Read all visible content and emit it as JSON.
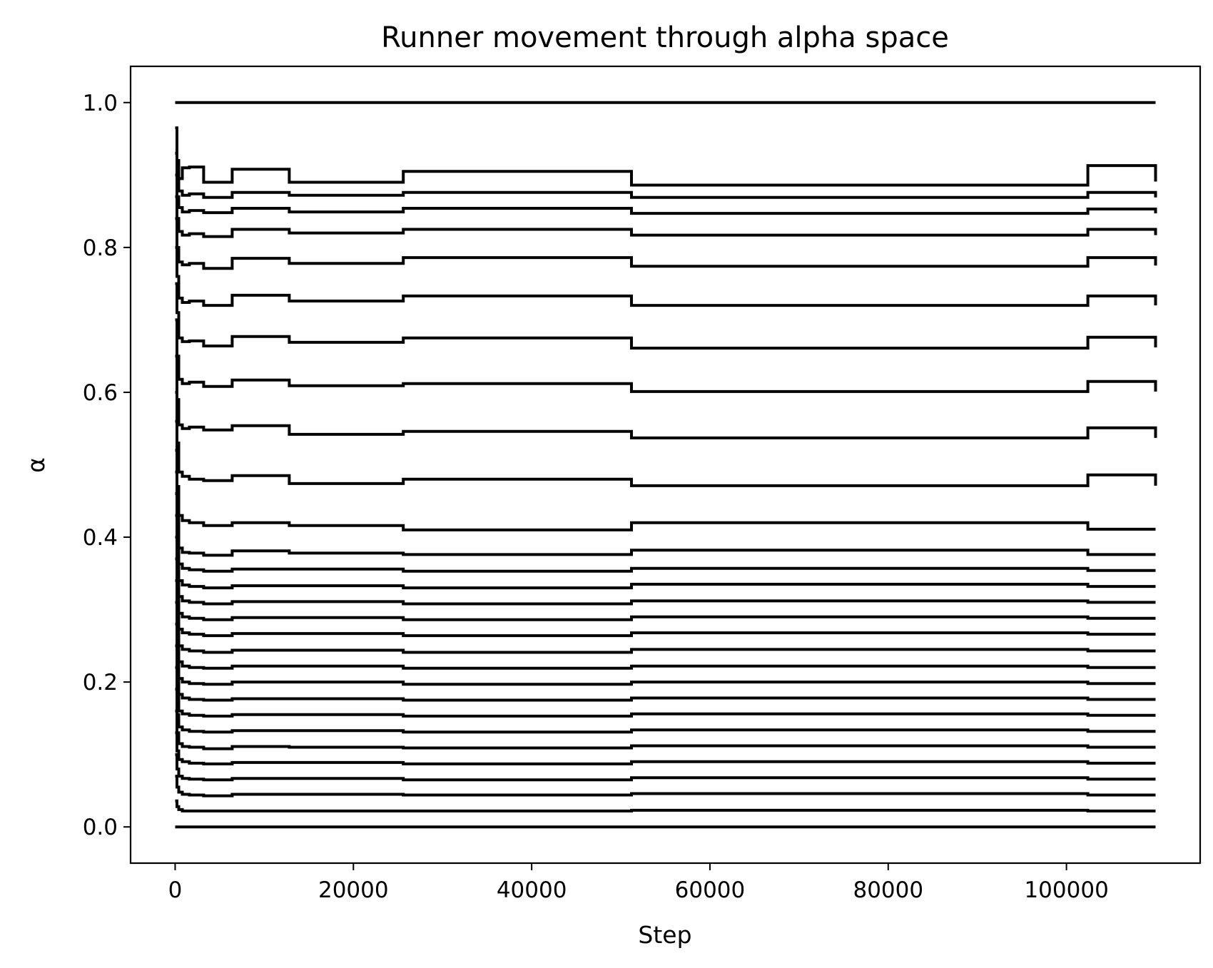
{
  "chart_data": {
    "type": "line",
    "title": "Runner movement through alpha space",
    "xlabel": "Step",
    "ylabel": "α",
    "xlim": [
      -5000,
      115000
    ],
    "ylim": [
      -0.05,
      1.05
    ],
    "xticks": [
      0,
      20000,
      40000,
      60000,
      80000,
      100000
    ],
    "xtick_labels": [
      "0",
      "20000",
      "40000",
      "60000",
      "80000",
      "100000"
    ],
    "yticks": [
      0.0,
      0.2,
      0.4,
      0.6,
      0.8,
      1.0
    ],
    "ytick_labels": [
      "0.0",
      "0.2",
      "0.4",
      "0.6",
      "0.8",
      "1.0"
    ],
    "grid": false,
    "legend": false,
    "line_color": "#000000",
    "x_breakpoints": [
      0,
      200,
      400,
      800,
      1600,
      3200,
      6400,
      12800,
      25600,
      51200,
      102400,
      110000
    ],
    "series": [
      {
        "values": [
          0.0,
          0.0,
          0.0,
          0.0,
          0.0,
          0.0,
          0.0,
          0.0,
          0.0,
          0.0,
          0.0,
          0.0
        ]
      },
      {
        "values": [
          0.036,
          0.028,
          0.024,
          0.022,
          0.022,
          0.022,
          0.022,
          0.022,
          0.022,
          0.023,
          0.022,
          0.022
        ]
      },
      {
        "values": [
          0.07,
          0.055,
          0.048,
          0.045,
          0.044,
          0.043,
          0.045,
          0.045,
          0.044,
          0.046,
          0.044,
          0.044
        ]
      },
      {
        "values": [
          0.1,
          0.08,
          0.07,
          0.067,
          0.066,
          0.065,
          0.067,
          0.067,
          0.065,
          0.068,
          0.066,
          0.066
        ]
      },
      {
        "values": [
          0.13,
          0.105,
          0.093,
          0.09,
          0.088,
          0.087,
          0.089,
          0.089,
          0.087,
          0.09,
          0.088,
          0.088
        ]
      },
      {
        "values": [
          0.16,
          0.13,
          0.115,
          0.111,
          0.11,
          0.108,
          0.111,
          0.11,
          0.109,
          0.112,
          0.11,
          0.11
        ]
      },
      {
        "values": [
          0.19,
          0.155,
          0.138,
          0.134,
          0.132,
          0.131,
          0.133,
          0.133,
          0.131,
          0.134,
          0.132,
          0.132
        ]
      },
      {
        "values": [
          0.22,
          0.18,
          0.16,
          0.156,
          0.154,
          0.153,
          0.155,
          0.155,
          0.153,
          0.156,
          0.154,
          0.154
        ]
      },
      {
        "values": [
          0.25,
          0.205,
          0.183,
          0.178,
          0.176,
          0.175,
          0.177,
          0.177,
          0.175,
          0.178,
          0.176,
          0.176
        ]
      },
      {
        "values": [
          0.28,
          0.23,
          0.205,
          0.2,
          0.198,
          0.197,
          0.2,
          0.2,
          0.197,
          0.2,
          0.198,
          0.198
        ]
      },
      {
        "values": [
          0.31,
          0.255,
          0.228,
          0.222,
          0.22,
          0.219,
          0.222,
          0.222,
          0.219,
          0.222,
          0.22,
          0.22
        ]
      },
      {
        "values": [
          0.34,
          0.28,
          0.25,
          0.245,
          0.243,
          0.241,
          0.244,
          0.244,
          0.241,
          0.245,
          0.243,
          0.243
        ]
      },
      {
        "values": [
          0.37,
          0.305,
          0.273,
          0.268,
          0.266,
          0.264,
          0.267,
          0.267,
          0.264,
          0.268,
          0.266,
          0.266
        ]
      },
      {
        "values": [
          0.4,
          0.33,
          0.295,
          0.29,
          0.288,
          0.286,
          0.289,
          0.289,
          0.286,
          0.29,
          0.288,
          0.288
        ]
      },
      {
        "values": [
          0.43,
          0.355,
          0.318,
          0.312,
          0.31,
          0.308,
          0.311,
          0.311,
          0.308,
          0.312,
          0.31,
          0.31
        ]
      },
      {
        "values": [
          0.46,
          0.38,
          0.34,
          0.334,
          0.332,
          0.33,
          0.333,
          0.333,
          0.33,
          0.335,
          0.332,
          0.332
        ]
      },
      {
        "values": [
          0.49,
          0.405,
          0.363,
          0.357,
          0.355,
          0.353,
          0.356,
          0.356,
          0.353,
          0.357,
          0.354,
          0.354
        ]
      },
      {
        "values": [
          0.52,
          0.43,
          0.385,
          0.379,
          0.378,
          0.375,
          0.381,
          0.378,
          0.376,
          0.382,
          0.376,
          0.376
        ]
      },
      {
        "values": [
          0.56,
          0.47,
          0.43,
          0.423,
          0.42,
          0.416,
          0.42,
          0.416,
          0.41,
          0.42,
          0.411,
          0.411
        ]
      },
      {
        "values": [
          0.6,
          0.53,
          0.49,
          0.484,
          0.48,
          0.478,
          0.485,
          0.474,
          0.48,
          0.471,
          0.486,
          0.471
        ]
      },
      {
        "values": [
          0.65,
          0.59,
          0.555,
          0.55,
          0.552,
          0.548,
          0.554,
          0.542,
          0.546,
          0.537,
          0.551,
          0.537
        ]
      },
      {
        "values": [
          0.7,
          0.65,
          0.618,
          0.612,
          0.614,
          0.608,
          0.617,
          0.609,
          0.612,
          0.601,
          0.615,
          0.601
        ]
      },
      {
        "values": [
          0.75,
          0.71,
          0.675,
          0.67,
          0.671,
          0.664,
          0.677,
          0.669,
          0.675,
          0.661,
          0.676,
          0.662
        ]
      },
      {
        "values": [
          0.8,
          0.76,
          0.73,
          0.724,
          0.726,
          0.72,
          0.734,
          0.726,
          0.733,
          0.72,
          0.733,
          0.72
        ]
      },
      {
        "values": [
          0.84,
          0.8,
          0.78,
          0.776,
          0.778,
          0.771,
          0.785,
          0.778,
          0.786,
          0.774,
          0.786,
          0.775
        ]
      },
      {
        "values": [
          0.87,
          0.84,
          0.822,
          0.817,
          0.819,
          0.815,
          0.825,
          0.82,
          0.825,
          0.817,
          0.825,
          0.817
        ]
      },
      {
        "values": [
          0.9,
          0.87,
          0.855,
          0.849,
          0.851,
          0.848,
          0.854,
          0.849,
          0.854,
          0.847,
          0.853,
          0.847
        ]
      },
      {
        "values": [
          0.93,
          0.895,
          0.878,
          0.872,
          0.874,
          0.869,
          0.876,
          0.872,
          0.876,
          0.869,
          0.876,
          0.869
        ]
      },
      {
        "values": [
          0.965,
          0.92,
          0.895,
          0.91,
          0.911,
          0.89,
          0.908,
          0.89,
          0.905,
          0.886,
          0.913,
          0.891
        ]
      },
      {
        "values": [
          1.0,
          1.0,
          1.0,
          1.0,
          1.0,
          1.0,
          1.0,
          1.0,
          1.0,
          1.0,
          1.0,
          1.0
        ]
      }
    ]
  }
}
